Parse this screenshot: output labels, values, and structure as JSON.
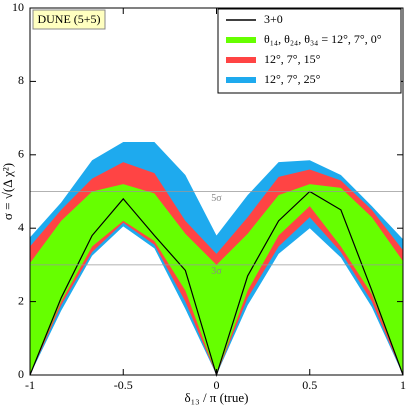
{
  "chart_data": {
    "type": "band",
    "annotation": "DUNE (5+5)",
    "xlabel": "δ₁₃ / π (true)",
    "ylabel": "σ = √(Δ χ²)",
    "x": [
      -1,
      -0.833,
      -0.667,
      -0.5,
      -0.333,
      -0.167,
      0,
      0.167,
      0.333,
      0.5,
      0.667,
      0.833,
      1
    ],
    "xlim": [
      -1,
      1
    ],
    "xticks": [
      -1,
      -0.5,
      0,
      0.5,
      1
    ],
    "ylim": [
      0,
      10
    ],
    "yticks": [
      0,
      2,
      4,
      6,
      8,
      10
    ],
    "hlines": [
      {
        "value": 5,
        "label": "5σ"
      },
      {
        "value": 3,
        "label": "3σ"
      }
    ],
    "series": [
      {
        "name": "3+0",
        "color": "#000000",
        "values": [
          0,
          2.1,
          3.8,
          4.8,
          3.8,
          2.85,
          0,
          2.7,
          4.2,
          5.0,
          4.5,
          2.3,
          0
        ]
      },
      {
        "name": "θ₁₄, θ₂₄, θ₃₄ = 12°, 7°, 0°",
        "color": "#66ff00",
        "low": [
          0,
          2.0,
          3.5,
          4.2,
          3.65,
          2.3,
          0,
          2.3,
          3.8,
          4.6,
          3.5,
          2.2,
          0
        ],
        "high": [
          3.05,
          4.2,
          5.0,
          5.2,
          4.95,
          3.85,
          3.0,
          3.85,
          4.9,
          5.2,
          5.1,
          4.3,
          3.1
        ]
      },
      {
        "name": "12°, 7°, 15°",
        "color": "#ff4444",
        "low": [
          0,
          1.9,
          3.35,
          4.15,
          3.55,
          2.0,
          0,
          2.1,
          3.5,
          4.3,
          3.35,
          2.0,
          0
        ],
        "high": [
          3.5,
          4.5,
          5.35,
          5.8,
          5.5,
          4.2,
          3.3,
          4.3,
          5.4,
          5.6,
          5.3,
          4.5,
          3.4
        ]
      },
      {
        "name": "12°, 7°, 25°",
        "color": "#1eaaee",
        "low": [
          0,
          1.75,
          3.25,
          4.05,
          3.45,
          1.8,
          0,
          1.9,
          3.3,
          4.0,
          3.2,
          1.85,
          0
        ],
        "high": [
          3.75,
          4.7,
          5.85,
          6.35,
          6.35,
          5.45,
          3.8,
          4.9,
          5.8,
          5.85,
          5.45,
          4.6,
          3.7
        ]
      }
    ]
  }
}
